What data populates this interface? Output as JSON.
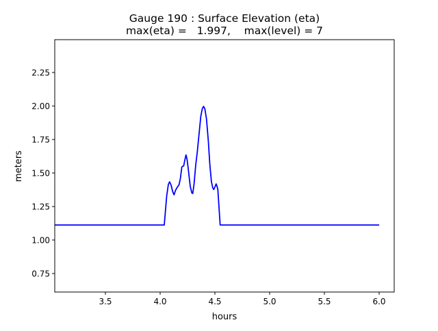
{
  "chart_data": {
    "type": "line",
    "title_line1": "Gauge 190 : Surface Elevation (eta)",
    "title_line2": "max(eta) =   1.997,    max(level) = 7",
    "xlabel": "hours",
    "ylabel": "meters",
    "xlim": [
      3.0375,
      6.1375
    ],
    "ylim": [
      0.612,
      2.495
    ],
    "xticks": [
      3.5,
      4.0,
      4.5,
      5.0,
      5.5,
      6.0
    ],
    "xtick_labels": [
      "3.5",
      "4.0",
      "4.5",
      "5.0",
      "5.5",
      "6.0"
    ],
    "yticks": [
      0.75,
      1.0,
      1.25,
      1.5,
      1.75,
      2.0,
      2.25
    ],
    "ytick_labels": [
      "0.75",
      "1.00",
      "1.25",
      "1.50",
      "1.75",
      "2.00",
      "2.25"
    ],
    "grid": false,
    "series": [
      {
        "name": "eta",
        "color": "#0000ff",
        "x": [
          3.0375,
          4.0375,
          4.06,
          4.075,
          4.086,
          4.1,
          4.115,
          4.127,
          4.14,
          4.152,
          4.173,
          4.185,
          4.198,
          4.215,
          4.226,
          4.236,
          4.246,
          4.256,
          4.275,
          4.29,
          4.298,
          4.31,
          4.325,
          4.339,
          4.371,
          4.385,
          4.396,
          4.408,
          4.423,
          4.44,
          4.454,
          4.468,
          4.48,
          4.489,
          4.5,
          4.511,
          4.52,
          4.527,
          4.548,
          6.0
        ],
        "y": [
          1.112,
          1.112,
          1.33,
          1.415,
          1.434,
          1.41,
          1.36,
          1.337,
          1.37,
          1.388,
          1.413,
          1.46,
          1.546,
          1.553,
          1.6,
          1.635,
          1.6,
          1.534,
          1.4,
          1.35,
          1.348,
          1.42,
          1.56,
          1.653,
          1.923,
          1.98,
          1.997,
          1.98,
          1.904,
          1.74,
          1.564,
          1.436,
          1.39,
          1.377,
          1.395,
          1.419,
          1.4,
          1.377,
          1.112,
          1.112
        ]
      }
    ]
  }
}
